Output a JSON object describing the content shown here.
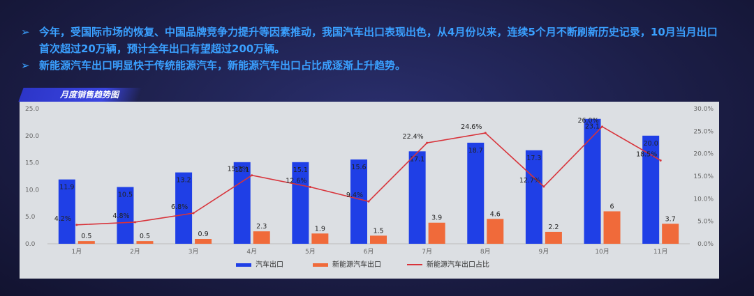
{
  "bullets": [
    "今年，受国际市场的恢复、中国品牌竞争力提升等因素推动，我国汽车出口表现出色，从4月份以来，连续5个月不断刷新历史记录，10月当月出口首次超过20万辆，预计全年出口有望超过200万辆。",
    "新能源汽车出口明显快于传统能源汽车，新能源汽车出口占比成逐渐上升趋势。"
  ],
  "bullet_marker": "➢",
  "panel_title": "月度销售趋势图",
  "colors": {
    "auto": "#1f3fe6",
    "nev": "#f06a3a",
    "share": "#d8333a"
  },
  "chart_data": {
    "type": "bar",
    "categories": [
      "1月",
      "2月",
      "3月",
      "4月",
      "5月",
      "6月",
      "7月",
      "8月",
      "9月",
      "10月",
      "11月"
    ],
    "series": [
      {
        "name": "汽车出口",
        "type": "bar",
        "axis": "left",
        "values": [
          11.9,
          10.5,
          13.2,
          15.1,
          15.1,
          15.6,
          17.1,
          18.7,
          17.3,
          23.1,
          20.0
        ],
        "labels": [
          "11.9",
          "10.5",
          "13.2",
          "15.1",
          "15.1",
          "15.6",
          "17.1",
          "18.7",
          "17.3",
          "23.1",
          "20.0"
        ]
      },
      {
        "name": "新能源汽车出口",
        "type": "bar",
        "axis": "left",
        "values": [
          0.5,
          0.5,
          0.9,
          2.3,
          1.9,
          1.5,
          3.9,
          4.6,
          2.2,
          6,
          3.7
        ],
        "labels": [
          "0.5",
          "0.5",
          "0.9",
          "2.3",
          "1.9",
          "1.5",
          "3.9",
          "4.6",
          "2.2",
          "6",
          "3.7"
        ]
      },
      {
        "name": "新能源汽车出口占比",
        "type": "line",
        "axis": "right",
        "values": [
          4.2,
          4.8,
          6.8,
          15.2,
          12.6,
          9.4,
          22.4,
          24.6,
          12.7,
          26.0,
          18.5
        ],
        "labels": [
          "4.2%",
          "4.8%",
          "6.8%",
          "15.2%",
          "12.6%",
          "9.4%",
          "22.4%",
          "24.6%",
          "12.7%",
          "26.0%",
          "18.5%"
        ]
      }
    ],
    "y_left": {
      "ticks": [
        "0.0",
        "5.0",
        "10.0",
        "15.0",
        "20.0",
        "25.0"
      ],
      "range": [
        0,
        25
      ]
    },
    "y_right": {
      "ticks": [
        "0.0%",
        "5.0%",
        "10.0%",
        "15.0%",
        "20.0%",
        "25.0%",
        "30.0%"
      ],
      "range": [
        0,
        30
      ]
    },
    "legend_position": "bottom-center"
  }
}
